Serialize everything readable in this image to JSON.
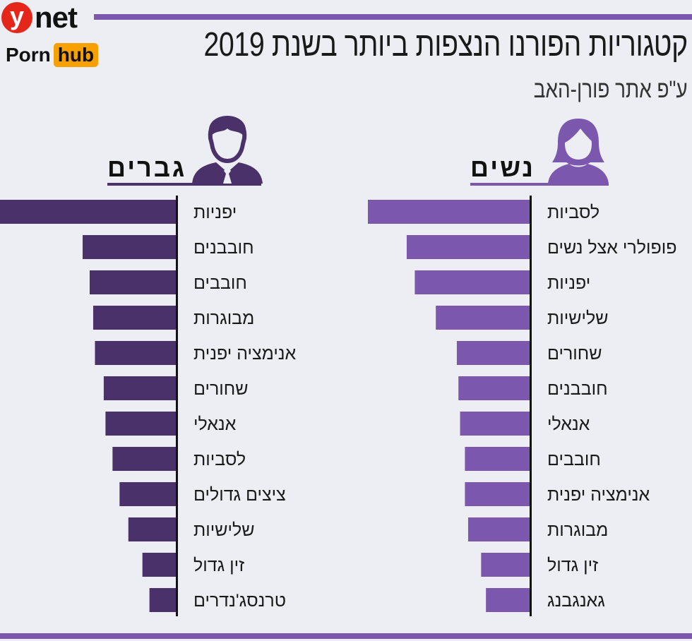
{
  "brand": {
    "ynet_y": "y",
    "ynet_net": "net",
    "pornhub_porn": "Porn",
    "pornhub_hub": "hub"
  },
  "title": "קטגוריות הפורנו הנצפות ביותר בשנת 2019",
  "subtitle": "ע\"פ אתר פורן-האב",
  "colors": {
    "men": "#4b3169",
    "women": "#7b58ad",
    "accent_rule": "#7b58ad",
    "ynet_red": "#e4261b",
    "hub_orange": "#f8a000"
  },
  "chart_data": [
    {
      "type": "bar",
      "orientation": "horizontal",
      "title": "גברים",
      "icon": "man-icon",
      "color": "#4b3169",
      "categories": [
        "יפניות",
        "חובבנים",
        "חובבים",
        "מבוגרות",
        "אנימציה יפנית",
        "שחורים",
        "אנאלי",
        "לסביות",
        "ציצים גדולים",
        "שלישיות",
        "זין גדול",
        "טרנסג'נדרים"
      ],
      "values": [
        100,
        53,
        49,
        47,
        46,
        41,
        40,
        36,
        32,
        27,
        19,
        15
      ],
      "xlabel": "",
      "ylabel": "",
      "xlim": [
        0,
        100
      ]
    },
    {
      "type": "bar",
      "orientation": "horizontal",
      "title": "נשים",
      "icon": "woman-icon",
      "color": "#7b58ad",
      "categories": [
        "לסביות",
        "פופולרי אצל נשים",
        "יפניות",
        "שלישיות",
        "שחורים",
        "חובבנים",
        "אנאלי",
        "חובבים",
        "אנימציה יפנית",
        "מבוגרות",
        "זין גדול",
        "גאנגבנג"
      ],
      "values": [
        100,
        76,
        71,
        58,
        45,
        44,
        43,
        40,
        40,
        38,
        30,
        27
      ],
      "xlabel": "",
      "ylabel": "",
      "xlim": [
        0,
        100
      ]
    }
  ]
}
